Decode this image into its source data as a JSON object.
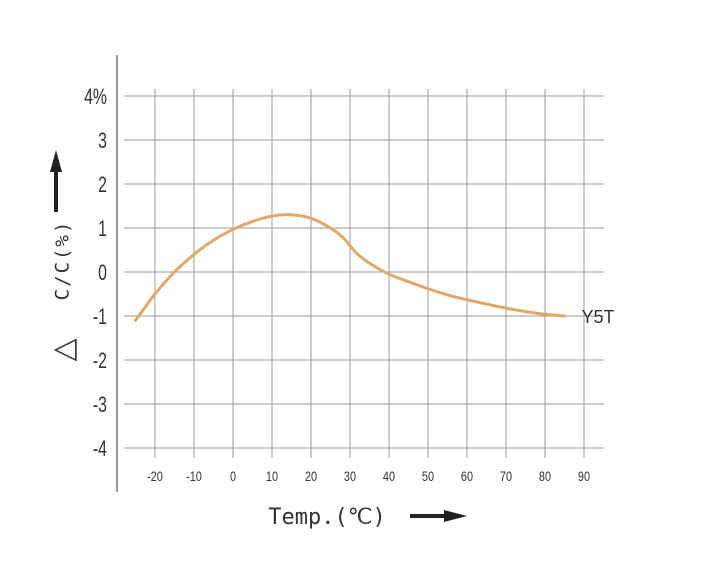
{
  "chart_data": {
    "type": "line",
    "title": "",
    "xlabel": "Temp.(℃)",
    "ylabel": "C/C(%)",
    "ylabel_symbol": "△",
    "xlim": [
      -25,
      90
    ],
    "ylim": [
      -4,
      4
    ],
    "x_ticks": [
      -20,
      -10,
      0,
      10,
      20,
      30,
      40,
      50,
      60,
      70,
      80,
      90
    ],
    "x_tick_labels": [
      "-20",
      "-10",
      "0",
      "10",
      "20",
      "30",
      "40",
      "50",
      "60",
      "70",
      "80",
      "90"
    ],
    "y_ticks": [
      4,
      3,
      2,
      1,
      0,
      -1,
      -2,
      -3,
      -4
    ],
    "y_tick_labels": [
      "4%",
      "3",
      "2",
      "1",
      "0",
      "-1",
      "-2",
      "-3",
      "-4"
    ],
    "grid": true,
    "series": [
      {
        "name": "Y5T",
        "color": "#e0a86c",
        "x": [
          -25,
          -20,
          -15,
          -10,
          -5,
          0,
          5,
          10,
          15,
          20,
          25,
          28,
          30,
          32,
          35,
          40,
          45,
          50,
          55,
          60,
          65,
          70,
          75,
          80,
          85
        ],
        "y": [
          -1.1,
          -0.5,
          0.0,
          0.4,
          0.72,
          0.97,
          1.15,
          1.27,
          1.3,
          1.22,
          1.0,
          0.8,
          0.6,
          0.4,
          0.2,
          -0.05,
          -0.22,
          -0.38,
          -0.52,
          -0.63,
          -0.73,
          -0.82,
          -0.9,
          -0.96,
          -1.0
        ]
      }
    ]
  }
}
